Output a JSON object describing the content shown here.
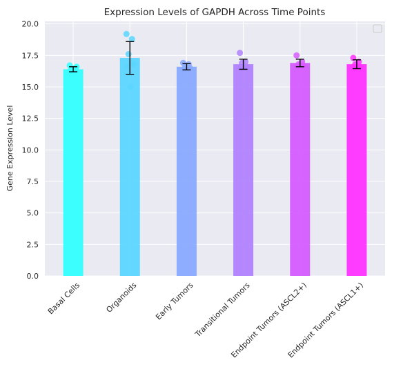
{
  "chart_data": {
    "type": "bar",
    "title": "Expression Levels of GAPDH Across Time Points",
    "xlabel": "",
    "ylabel": "Gene Expression Level",
    "ylim": [
      0,
      20.2
    ],
    "yticks": [
      "0.0",
      "2.5",
      "5.0",
      "7.5",
      "10.0",
      "12.5",
      "15.0",
      "17.5",
      "20.0"
    ],
    "ytick_values": [
      0,
      2.5,
      5.0,
      7.5,
      10.0,
      12.5,
      15.0,
      17.5,
      20.0
    ],
    "grid": true,
    "legend": "top-right, empty",
    "categories": [
      "Basal Cells",
      "Organoids",
      "Early Tumors",
      "Transitional Tumors",
      "Endpoint Tumors (ASCL2+)",
      "Endpoint Tumors (ASCL1+)"
    ],
    "values": [
      16.4,
      17.3,
      16.6,
      16.8,
      16.9,
      16.8
    ],
    "errors": [
      0.2,
      1.3,
      0.25,
      0.4,
      0.3,
      0.35
    ],
    "colors": [
      "#33ffff",
      "#5cd6ff",
      "#8aaaff",
      "#b182ff",
      "#d65cff",
      "#ff33ff"
    ],
    "points": [
      [
        16.7,
        16.5,
        16.4,
        16.6,
        16.3
      ],
      [
        19.2,
        18.8,
        17.6,
        16.8,
        16.6,
        15.0
      ],
      [
        16.9,
        16.8,
        16.7,
        16.5,
        16.4
      ],
      [
        17.7,
        17.0,
        16.9,
        16.6,
        16.5
      ],
      [
        17.5,
        17.0,
        16.8,
        16.7,
        16.6
      ],
      [
        17.3,
        17.0,
        16.8,
        16.6,
        16.5
      ]
    ]
  }
}
